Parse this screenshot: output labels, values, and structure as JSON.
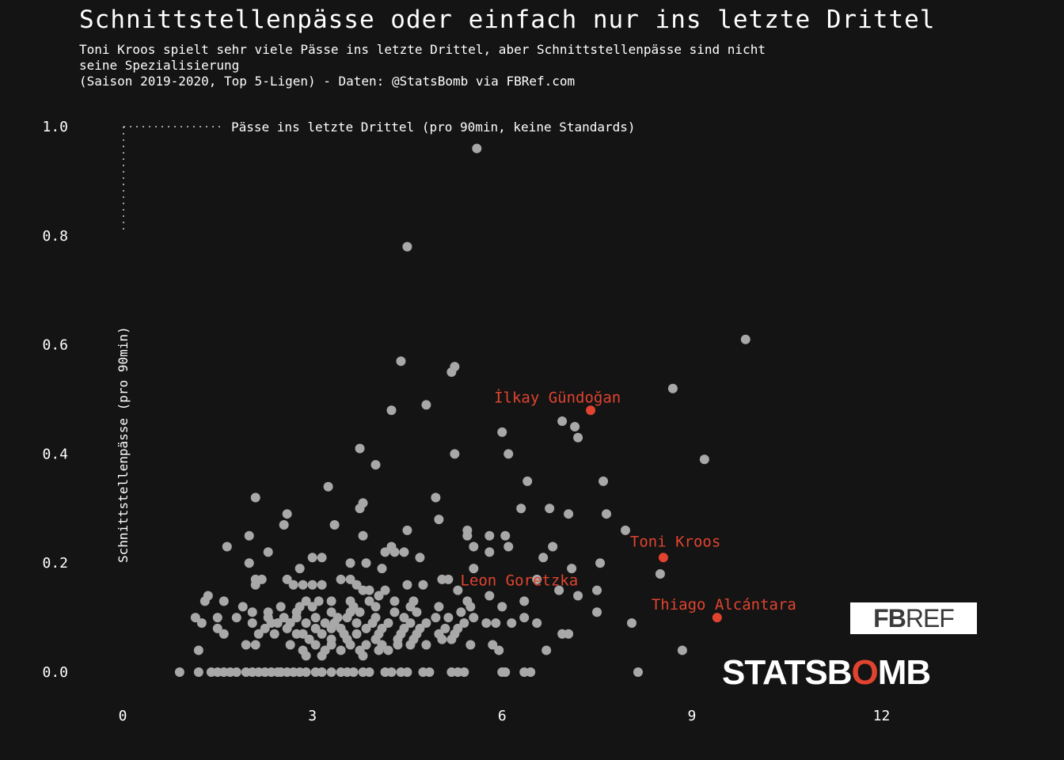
{
  "title": "Schnittstellenpässe oder einfach nur ins letzte Drittel",
  "subtitle_lines": [
    "Toni Kroos spielt sehr viele Pässe ins letzte Drittel, aber Schnittstellenpässe sind nicht",
    "seine Spezialisierung",
    "(Saison 2019-2020, Top 5-Ligen) - Daten: @StatsBomb via FBRef.com"
  ],
  "logos": {
    "fbref": {
      "bold": "FB",
      "light": "REF"
    },
    "statsbomb": {
      "part1": "STATSB",
      "part2": "O",
      "part3": "MB"
    }
  },
  "colors": {
    "background": "#141414",
    "points": "#a8a8a8",
    "highlight": "#e0442f",
    "text": "#ffffff"
  },
  "chart_data": {
    "type": "scatter",
    "xlabel": "Pässe ins letzte Drittel (pro 90min, keine Standards)",
    "ylabel": "Schnittstellenpässe (pro 90min)",
    "xlim": [
      0,
      13
    ],
    "ylim": [
      0,
      1.0
    ],
    "x_ticks": [
      0,
      3,
      6,
      9,
      12
    ],
    "y_ticks": [
      "0.0",
      "0.2",
      "0.4",
      "0.6",
      "0.8",
      "1.0"
    ],
    "grid": false,
    "highlighted": [
      {
        "name": "İlkay Gündoğan",
        "x": 7.4,
        "y": 0.48
      },
      {
        "name": "Toni Kroos",
        "x": 8.55,
        "y": 0.21
      },
      {
        "name": "Thiago Alcántara",
        "x": 9.4,
        "y": 0.1
      },
      {
        "name": "Leon Goretzka",
        "x": 4.4,
        "y": 0.15
      }
    ],
    "points": [
      [
        5.6,
        0.96
      ],
      [
        4.5,
        0.78
      ],
      [
        9.85,
        0.61
      ],
      [
        4.4,
        0.57
      ],
      [
        5.25,
        0.56
      ],
      [
        5.2,
        0.55
      ],
      [
        8.7,
        0.52
      ],
      [
        4.8,
        0.49
      ],
      [
        4.25,
        0.48
      ],
      [
        6.95,
        0.46
      ],
      [
        7.15,
        0.45
      ],
      [
        7.2,
        0.43
      ],
      [
        6.0,
        0.44
      ],
      [
        3.75,
        0.41
      ],
      [
        5.25,
        0.4
      ],
      [
        6.1,
        0.4
      ],
      [
        9.2,
        0.39
      ],
      [
        4.0,
        0.38
      ],
      [
        7.6,
        0.35
      ],
      [
        6.4,
        0.35
      ],
      [
        3.25,
        0.34
      ],
      [
        2.1,
        0.32
      ],
      [
        4.95,
        0.32
      ],
      [
        3.8,
        0.31
      ],
      [
        3.75,
        0.3
      ],
      [
        6.3,
        0.3
      ],
      [
        6.75,
        0.3
      ],
      [
        7.65,
        0.29
      ],
      [
        7.05,
        0.29
      ],
      [
        2.6,
        0.29
      ],
      [
        5.0,
        0.28
      ],
      [
        2.55,
        0.27
      ],
      [
        3.35,
        0.27
      ],
      [
        4.5,
        0.26
      ],
      [
        5.45,
        0.26
      ],
      [
        7.95,
        0.26
      ],
      [
        2.0,
        0.25
      ],
      [
        3.8,
        0.25
      ],
      [
        5.45,
        0.25
      ],
      [
        5.8,
        0.25
      ],
      [
        6.05,
        0.25
      ],
      [
        1.65,
        0.23
      ],
      [
        4.25,
        0.23
      ],
      [
        4.3,
        0.22
      ],
      [
        4.15,
        0.22
      ],
      [
        4.45,
        0.22
      ],
      [
        5.55,
        0.23
      ],
      [
        6.1,
        0.23
      ],
      [
        6.8,
        0.23
      ],
      [
        2.3,
        0.22
      ],
      [
        5.8,
        0.22
      ],
      [
        3.0,
        0.21
      ],
      [
        3.15,
        0.21
      ],
      [
        4.7,
        0.21
      ],
      [
        6.65,
        0.21
      ],
      [
        2.0,
        0.2
      ],
      [
        3.6,
        0.2
      ],
      [
        3.85,
        0.2
      ],
      [
        7.55,
        0.2
      ],
      [
        2.8,
        0.19
      ],
      [
        4.1,
        0.19
      ],
      [
        5.55,
        0.19
      ],
      [
        7.1,
        0.19
      ],
      [
        8.5,
        0.18
      ],
      [
        2.1,
        0.17
      ],
      [
        2.2,
        0.17
      ],
      [
        2.6,
        0.17
      ],
      [
        3.45,
        0.17
      ],
      [
        3.6,
        0.17
      ],
      [
        5.05,
        0.17
      ],
      [
        5.15,
        0.17
      ],
      [
        6.55,
        0.17
      ],
      [
        2.1,
        0.16
      ],
      [
        2.7,
        0.16
      ],
      [
        2.85,
        0.16
      ],
      [
        3.0,
        0.16
      ],
      [
        3.15,
        0.16
      ],
      [
        3.7,
        0.16
      ],
      [
        4.5,
        0.16
      ],
      [
        4.75,
        0.16
      ],
      [
        3.8,
        0.15
      ],
      [
        3.9,
        0.15
      ],
      [
        4.15,
        0.15
      ],
      [
        4.05,
        0.14
      ],
      [
        5.3,
        0.15
      ],
      [
        6.9,
        0.15
      ],
      [
        7.5,
        0.15
      ],
      [
        1.35,
        0.14
      ],
      [
        1.3,
        0.13
      ],
      [
        1.6,
        0.13
      ],
      [
        2.9,
        0.13
      ],
      [
        3.1,
        0.13
      ],
      [
        3.3,
        0.13
      ],
      [
        3.6,
        0.13
      ],
      [
        3.9,
        0.13
      ],
      [
        4.3,
        0.13
      ],
      [
        4.6,
        0.13
      ],
      [
        5.45,
        0.13
      ],
      [
        5.8,
        0.14
      ],
      [
        6.35,
        0.13
      ],
      [
        7.2,
        0.14
      ],
      [
        1.9,
        0.12
      ],
      [
        2.5,
        0.12
      ],
      [
        2.8,
        0.12
      ],
      [
        3.0,
        0.12
      ],
      [
        3.65,
        0.12
      ],
      [
        4.0,
        0.12
      ],
      [
        4.55,
        0.12
      ],
      [
        5.0,
        0.12
      ],
      [
        5.5,
        0.12
      ],
      [
        6.0,
        0.12
      ],
      [
        2.05,
        0.11
      ],
      [
        2.3,
        0.11
      ],
      [
        2.75,
        0.11
      ],
      [
        3.3,
        0.11
      ],
      [
        3.6,
        0.11
      ],
      [
        3.75,
        0.11
      ],
      [
        4.3,
        0.11
      ],
      [
        4.65,
        0.11
      ],
      [
        5.35,
        0.11
      ],
      [
        7.5,
        0.11
      ],
      [
        1.15,
        0.1
      ],
      [
        1.5,
        0.1
      ],
      [
        1.8,
        0.1
      ],
      [
        2.3,
        0.1
      ],
      [
        2.55,
        0.1
      ],
      [
        2.75,
        0.1
      ],
      [
        3.05,
        0.1
      ],
      [
        3.4,
        0.1
      ],
      [
        3.55,
        0.1
      ],
      [
        4.0,
        0.1
      ],
      [
        4.45,
        0.1
      ],
      [
        4.95,
        0.1
      ],
      [
        5.15,
        0.1
      ],
      [
        5.55,
        0.1
      ],
      [
        6.35,
        0.1
      ],
      [
        1.25,
        0.09
      ],
      [
        2.05,
        0.09
      ],
      [
        2.35,
        0.09
      ],
      [
        2.45,
        0.09
      ],
      [
        2.65,
        0.09
      ],
      [
        2.9,
        0.09
      ],
      [
        3.2,
        0.09
      ],
      [
        3.35,
        0.09
      ],
      [
        3.7,
        0.09
      ],
      [
        3.95,
        0.09
      ],
      [
        4.2,
        0.09
      ],
      [
        4.55,
        0.09
      ],
      [
        4.8,
        0.09
      ],
      [
        5.4,
        0.09
      ],
      [
        5.75,
        0.09
      ],
      [
        5.9,
        0.09
      ],
      [
        6.15,
        0.09
      ],
      [
        6.55,
        0.09
      ],
      [
        8.05,
        0.09
      ],
      [
        1.5,
        0.08
      ],
      [
        2.25,
        0.08
      ],
      [
        2.6,
        0.08
      ],
      [
        3.05,
        0.08
      ],
      [
        3.3,
        0.08
      ],
      [
        3.45,
        0.08
      ],
      [
        3.85,
        0.08
      ],
      [
        4.1,
        0.08
      ],
      [
        4.45,
        0.08
      ],
      [
        4.7,
        0.08
      ],
      [
        5.1,
        0.08
      ],
      [
        5.3,
        0.08
      ],
      [
        1.6,
        0.07
      ],
      [
        2.15,
        0.07
      ],
      [
        2.4,
        0.07
      ],
      [
        2.75,
        0.07
      ],
      [
        2.85,
        0.07
      ],
      [
        3.15,
        0.07
      ],
      [
        3.5,
        0.07
      ],
      [
        3.7,
        0.07
      ],
      [
        4.05,
        0.07
      ],
      [
        4.4,
        0.07
      ],
      [
        4.65,
        0.07
      ],
      [
        5.0,
        0.07
      ],
      [
        5.25,
        0.07
      ],
      [
        6.95,
        0.07
      ],
      [
        7.05,
        0.07
      ],
      [
        2.95,
        0.06
      ],
      [
        3.3,
        0.06
      ],
      [
        3.55,
        0.06
      ],
      [
        4.0,
        0.06
      ],
      [
        4.35,
        0.06
      ],
      [
        4.6,
        0.06
      ],
      [
        5.05,
        0.06
      ],
      [
        5.2,
        0.06
      ],
      [
        1.95,
        0.05
      ],
      [
        2.1,
        0.05
      ],
      [
        2.65,
        0.05
      ],
      [
        3.05,
        0.05
      ],
      [
        3.3,
        0.05
      ],
      [
        3.6,
        0.05
      ],
      [
        3.85,
        0.05
      ],
      [
        4.1,
        0.05
      ],
      [
        4.35,
        0.05
      ],
      [
        4.55,
        0.05
      ],
      [
        4.8,
        0.05
      ],
      [
        5.5,
        0.05
      ],
      [
        5.85,
        0.05
      ],
      [
        1.2,
        0.04
      ],
      [
        2.85,
        0.04
      ],
      [
        3.2,
        0.04
      ],
      [
        3.45,
        0.04
      ],
      [
        3.75,
        0.04
      ],
      [
        4.05,
        0.04
      ],
      [
        4.2,
        0.04
      ],
      [
        5.95,
        0.04
      ],
      [
        6.7,
        0.04
      ],
      [
        8.85,
        0.04
      ],
      [
        2.9,
        0.03
      ],
      [
        3.15,
        0.03
      ],
      [
        3.8,
        0.03
      ],
      [
        0.9,
        0.0
      ],
      [
        1.2,
        0.0
      ],
      [
        1.4,
        0.0
      ],
      [
        1.5,
        0.0
      ],
      [
        1.6,
        0.0
      ],
      [
        1.7,
        0.0
      ],
      [
        1.8,
        0.0
      ],
      [
        1.95,
        0.0
      ],
      [
        2.05,
        0.0
      ],
      [
        2.15,
        0.0
      ],
      [
        2.25,
        0.0
      ],
      [
        2.35,
        0.0
      ],
      [
        2.45,
        0.0
      ],
      [
        2.5,
        0.0
      ],
      [
        2.6,
        0.0
      ],
      [
        2.7,
        0.0
      ],
      [
        2.8,
        0.0
      ],
      [
        2.9,
        0.0
      ],
      [
        3.05,
        0.0
      ],
      [
        3.15,
        0.0
      ],
      [
        3.3,
        0.0
      ],
      [
        3.45,
        0.0
      ],
      [
        3.55,
        0.0
      ],
      [
        3.65,
        0.0
      ],
      [
        3.8,
        0.0
      ],
      [
        3.9,
        0.0
      ],
      [
        4.15,
        0.0
      ],
      [
        4.25,
        0.0
      ],
      [
        4.4,
        0.0
      ],
      [
        4.5,
        0.0
      ],
      [
        4.75,
        0.0
      ],
      [
        4.85,
        0.0
      ],
      [
        5.2,
        0.0
      ],
      [
        5.3,
        0.0
      ],
      [
        5.4,
        0.0
      ],
      [
        6.0,
        0.0
      ],
      [
        6.05,
        0.0
      ],
      [
        6.35,
        0.0
      ],
      [
        6.45,
        0.0
      ],
      [
        8.15,
        0.0
      ]
    ]
  }
}
